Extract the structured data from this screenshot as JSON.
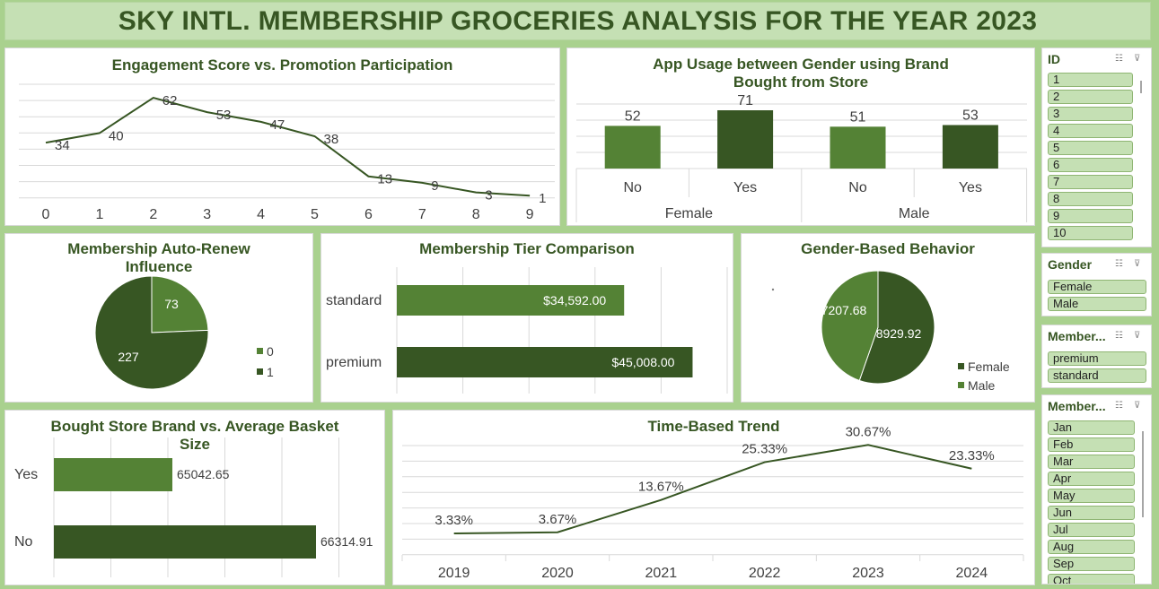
{
  "dashboard": {
    "title": "SKY INTL. MEMBERSHIP GROCERIES ANALYSIS FOR THE YEAR 2023"
  },
  "colors": {
    "light_green": "#548235",
    "dark_green": "#375623",
    "title_bg": "#c5e0b4",
    "frame": "#a9d18e"
  },
  "chart_data": [
    {
      "id": "engagement",
      "type": "line",
      "title": "Engagement Score vs. Promotion Participation",
      "x": [
        0,
        1,
        2,
        3,
        4,
        5,
        6,
        7,
        8,
        9
      ],
      "values": [
        34,
        40,
        62,
        53,
        47,
        38,
        13,
        9,
        3,
        1
      ],
      "ylim": [
        0,
        70
      ],
      "grid": true
    },
    {
      "id": "app_usage",
      "type": "bar",
      "title": "App Usage between Gender using Brand Bought from Store",
      "groups": [
        "Female",
        "Male"
      ],
      "categories": [
        "No",
        "Yes",
        "No",
        "Yes"
      ],
      "values": [
        52,
        71,
        51,
        53
      ],
      "ylim": [
        0,
        80
      ],
      "grid": true
    },
    {
      "id": "auto_renew",
      "type": "pie",
      "title": "Membership Auto-Renew Influence",
      "labels": [
        "0",
        "1"
      ],
      "values": [
        73,
        227
      ],
      "legend": "right"
    },
    {
      "id": "tier",
      "type": "bar",
      "orientation": "horizontal",
      "title": "Membership Tier Comparison",
      "categories": [
        "standard",
        "premium"
      ],
      "values": [
        34592.0,
        45008.0
      ],
      "value_labels": [
        "$34,592.00",
        "$45,008.00"
      ],
      "xlim": [
        0,
        50000
      ],
      "grid": true
    },
    {
      "id": "gender",
      "type": "pie",
      "title": "Gender-Based Behavior",
      "labels": [
        "Female",
        "Male"
      ],
      "values": [
        8929.92,
        7207.68
      ],
      "value_labels": [
        "8929.92",
        "7207.68"
      ],
      "legend": "bottom-right"
    },
    {
      "id": "store_brand",
      "type": "bar",
      "orientation": "horizontal",
      "title": "Bought Store Brand vs. Average Basket Size",
      "categories": [
        "Yes",
        "No"
      ],
      "values": [
        65042.65,
        66314.91
      ],
      "value_labels": [
        "65042.65",
        "66314.91"
      ],
      "xlim": [
        64000,
        66800
      ],
      "grid": true
    },
    {
      "id": "time_trend",
      "type": "line",
      "title": "Time-Based Trend",
      "x": [
        "2019",
        "2020",
        "2021",
        "2022",
        "2023",
        "2024"
      ],
      "values": [
        3.33,
        3.67,
        13.67,
        25.33,
        30.67,
        23.33
      ],
      "value_labels": [
        "3.33%",
        "3.67%",
        "13.67%",
        "25.33%",
        "30.67%",
        "23.33%"
      ],
      "ylim": [
        0,
        35
      ],
      "grid": true
    }
  ],
  "slicers": {
    "id": {
      "header": "ID",
      "items": [
        "1",
        "2",
        "3",
        "4",
        "5",
        "6",
        "7",
        "8",
        "9",
        "10"
      ]
    },
    "gender": {
      "header": "Gender",
      "items": [
        "Female",
        "Male"
      ]
    },
    "tier": {
      "header": "Member...",
      "items": [
        "premium",
        "standard"
      ]
    },
    "month": {
      "header": "Member...",
      "items": [
        "Jan",
        "Feb",
        "Mar",
        "Apr",
        "May",
        "Jun",
        "Jul",
        "Aug",
        "Sep",
        "Oct"
      ]
    }
  }
}
